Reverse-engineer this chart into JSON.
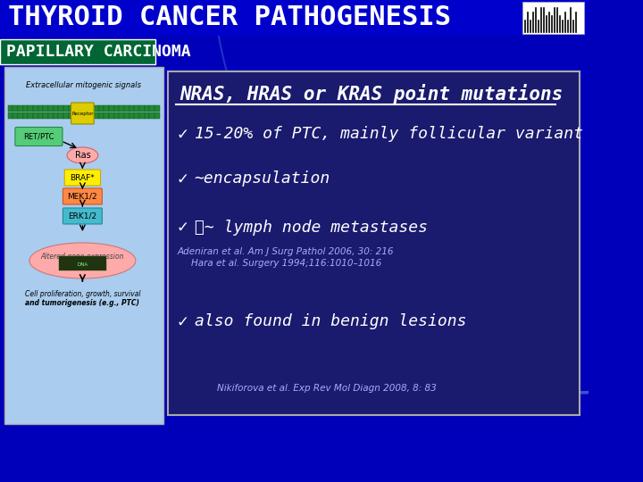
{
  "title": "THYROID CANCER PATHOGENESIS",
  "title_fontsize": 22,
  "title_color": "#FFFFFF",
  "title_bg_color": "#0000CC",
  "section_label": "PAPILLARY CARCINOMA",
  "section_label_bg": "#006633",
  "section_label_color": "#FFFFFF",
  "section_label_fontsize": 13,
  "bg_color": "#0000BB",
  "box_bg": "#1a1a6e",
  "content_box_bg": "#1a1a70",
  "content_box_border": "#CCCCCC",
  "heading": "NRAS, HRAS or KRAS point mutations",
  "heading_fontsize": 15,
  "heading_color": "#FFFFFF",
  "heading_underline": true,
  "bullets": [
    {
      "text": "15-20% of PTC, mainly follicular variant",
      "fontsize": 14,
      "color": "#FFFFFF",
      "prefix": "✓ "
    },
    {
      "text": "∼encapsulation",
      "fontsize": 14,
      "color": "#FFFFFF",
      "prefix": "✓ "
    },
    {
      "text": "⚘∼ lymph node metastases",
      "fontsize": 14,
      "color": "#FFFFFF",
      "prefix": "✓ "
    },
    {
      "text": "also found in benign lesions",
      "fontsize": 14,
      "color": "#FFFFFF",
      "prefix": "✓ "
    }
  ],
  "sub_refs_1": "Adeniran et al. Am J Surg Pathol 2006, 30: 216\nHara et al. Surgery 1994;116:1010–1016",
  "sub_refs_2": "Nikiforova et al. Exp Rev Mol Diagn 2008, 8: 83",
  "sub_ref_fontsize": 8,
  "sub_ref_color": "#AAAAFF",
  "arc_color": "#4488FF",
  "image_placeholder_color": "#6699CC"
}
